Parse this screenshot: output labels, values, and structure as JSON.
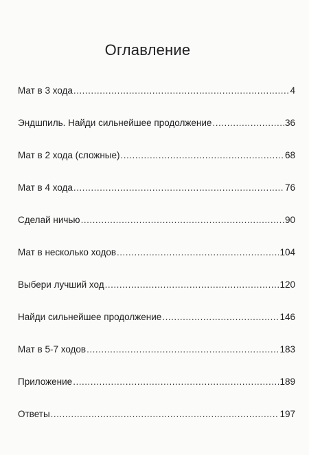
{
  "title": "Оглавление",
  "entries": [
    {
      "label": "Мат в 3 хода",
      "page": "4"
    },
    {
      "label": "Эндшпиль. Найди сильнейшее продолжение",
      "page": "36"
    },
    {
      "label": "Мат в 2 хода (сложные)",
      "page": "68"
    },
    {
      "label": "Мат в 4 хода",
      "page": "76"
    },
    {
      "label": "Сделай ничью",
      "page": "90"
    },
    {
      "label": "Мат в несколько ходов",
      "page": "104"
    },
    {
      "label": "Выбери лучший ход",
      "page": "120"
    },
    {
      "label": "Найди сильнейшее продолжение",
      "page": "146"
    },
    {
      "label": "Мат в 5-7 ходов",
      "page": "183"
    },
    {
      "label": "Приложение",
      "page": "189"
    },
    {
      "label": "Ответы",
      "page": "197"
    }
  ]
}
